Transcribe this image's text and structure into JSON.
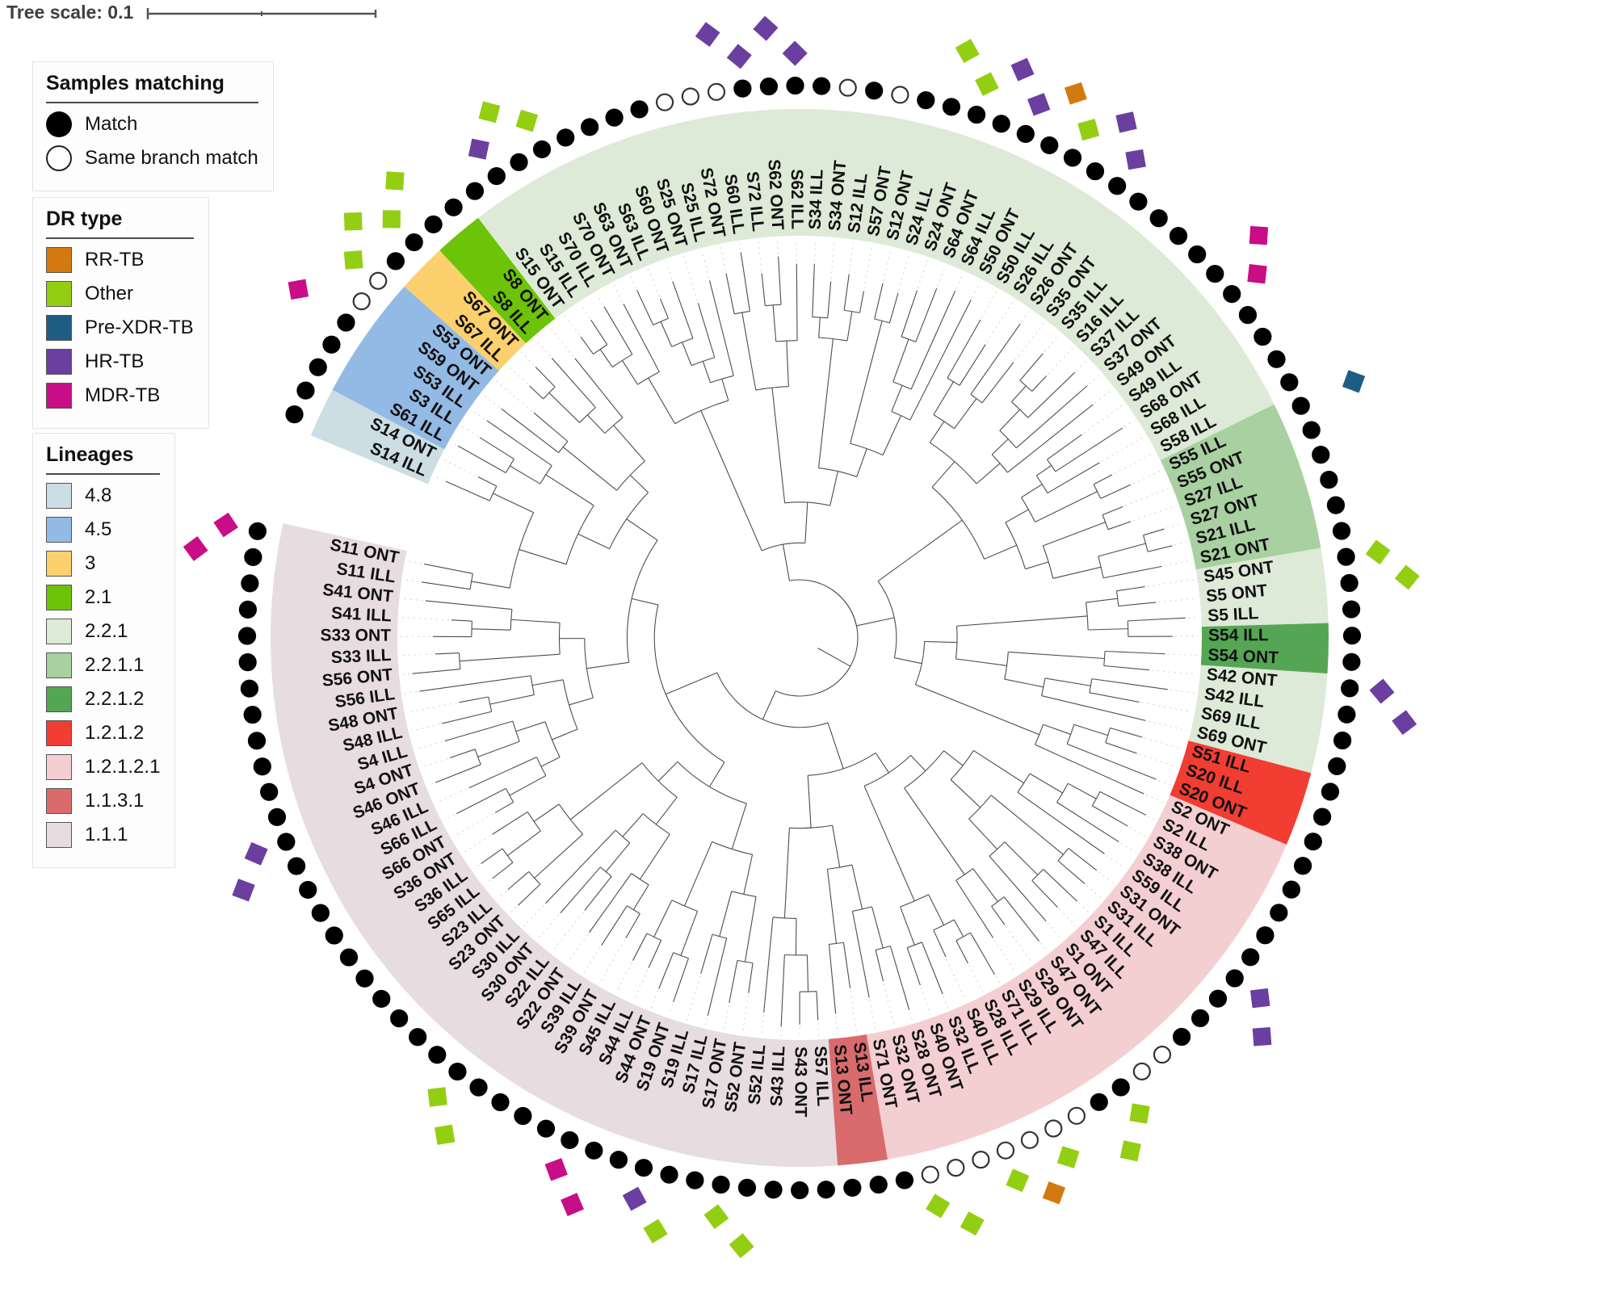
{
  "figure": {
    "tree_scale_label": "Tree scale: 0.1"
  },
  "legends": {
    "samples_matching": {
      "title": "Samples matching",
      "items": [
        {
          "label": "Match",
          "marker": "filled-circle"
        },
        {
          "label": "Same branch match",
          "marker": "open-circle"
        }
      ]
    },
    "dr_type": {
      "title": "DR type",
      "items": [
        {
          "key": "RR",
          "label": "RR-TB",
          "color": "#d4790f"
        },
        {
          "key": "Other",
          "label": "Other",
          "color": "#94ce12"
        },
        {
          "key": "PreXDR",
          "label": "Pre-XDR-TB",
          "color": "#1d5d84"
        },
        {
          "key": "HR",
          "label": "HR-TB",
          "color": "#6a3fa0"
        },
        {
          "key": "MDR",
          "label": "MDR-TB",
          "color": "#c90d87"
        }
      ]
    },
    "lineages": {
      "title": "Lineages",
      "items": [
        {
          "label": "4.8",
          "color": "#ccdde3"
        },
        {
          "label": "4.5",
          "color": "#92bae4"
        },
        {
          "label": "3",
          "color": "#fbd06d"
        },
        {
          "label": "2.1",
          "color": "#6cc308"
        },
        {
          "label": "2.2.1",
          "color": "#dcead7"
        },
        {
          "label": "2.2.1.1",
          "color": "#a9d0a0"
        },
        {
          "label": "2.2.1.2",
          "color": "#55a654"
        },
        {
          "label": "1.2.1.2",
          "color": "#f23d33"
        },
        {
          "label": "1.2.1.2.1",
          "color": "#f4cfd1"
        },
        {
          "label": "1.1.3.1",
          "color": "#d96b6c"
        },
        {
          "label": "1.1.1",
          "color": "#e7dce0"
        }
      ]
    }
  },
  "chart_data": {
    "type": "circular-phylogenetic-tree",
    "tree_scale": 0.1,
    "ring_gap_before": "S14 ILL",
    "leaf_fields": [
      "label",
      "lineage",
      "match(m=match,b=same_branch_match)",
      "dr_type"
    ],
    "leaves": [
      [
        "S15 ONT",
        "2.2.1",
        "m",
        null
      ],
      [
        "S15 ILL",
        "2.2.1",
        "m",
        "HR"
      ],
      [
        "S70 ILL",
        "2.2.1",
        "m",
        "Other"
      ],
      [
        "S70 ONT",
        "2.2.1",
        "m",
        "Other"
      ],
      [
        "S63 ONT",
        "2.2.1",
        "m",
        null
      ],
      [
        "S63 ILL",
        "2.2.1",
        "m",
        null
      ],
      [
        "S60 ONT",
        "2.2.1",
        "m",
        null
      ],
      [
        "S25 ONT",
        "2.2.1",
        "m",
        null
      ],
      [
        "S25 ILL",
        "2.2.1",
        "b",
        null
      ],
      [
        "S72 ONT",
        "2.2.1",
        "b",
        null
      ],
      [
        "S60 ILL",
        "2.2.1",
        "b",
        "HR"
      ],
      [
        "S72 ILL",
        "2.2.1",
        "m",
        "HR"
      ],
      [
        "S62 ONT",
        "2.2.1",
        "m",
        "HR"
      ],
      [
        "S62 ILL",
        "2.2.1",
        "m",
        "HR"
      ],
      [
        "S34 ILL",
        "2.2.1",
        "m",
        null
      ],
      [
        "S34 ONT",
        "2.2.1",
        "b",
        null
      ],
      [
        "S12 ILL",
        "2.2.1",
        "m",
        null
      ],
      [
        "S57 ONT",
        "2.2.1",
        "b",
        null
      ],
      [
        "S12 ONT",
        "2.2.1",
        "m",
        null
      ],
      [
        "S24 ILL",
        "2.2.1",
        "m",
        "Other"
      ],
      [
        "S24 ONT",
        "2.2.1",
        "m",
        "Other"
      ],
      [
        "S64 ONT",
        "2.2.1",
        "m",
        "HR"
      ],
      [
        "S64 ILL",
        "2.2.1",
        "m",
        "HR"
      ],
      [
        "S50 ONT",
        "2.2.1",
        "m",
        "RR"
      ],
      [
        "S50 ILL",
        "2.2.1",
        "m",
        "Other"
      ],
      [
        "S26 ILL",
        "2.2.1",
        "m",
        "HR"
      ],
      [
        "S26 ONT",
        "2.2.1",
        "m",
        "HR"
      ],
      [
        "S35 ONT",
        "2.2.1",
        "m",
        null
      ],
      [
        "S35 ILL",
        "2.2.1",
        "m",
        null
      ],
      [
        "S16 ILL",
        "2.2.1",
        "m",
        null
      ],
      [
        "S37 ILL",
        "2.2.1",
        "m",
        null
      ],
      [
        "S37 ONT",
        "2.2.1",
        "m",
        "MDR"
      ],
      [
        "S49 ONT",
        "2.2.1",
        "m",
        "MDR"
      ],
      [
        "S49 ILL",
        "2.2.1",
        "m",
        null
      ],
      [
        "S68 ONT",
        "2.2.1",
        "m",
        null
      ],
      [
        "S68 ILL",
        "2.2.1",
        "m",
        null
      ],
      [
        "S58 ILL",
        "2.2.1",
        "m",
        null
      ],
      [
        "S55 ILL",
        "2.2.1.1",
        "m",
        "PreXDR"
      ],
      [
        "S55 ONT",
        "2.2.1.1",
        "m",
        null
      ],
      [
        "S27 ILL",
        "2.2.1.1",
        "m",
        null
      ],
      [
        "S27 ONT",
        "2.2.1.1",
        "m",
        null
      ],
      [
        "S21 ILL",
        "2.2.1.1",
        "m",
        null
      ],
      [
        "S21 ONT",
        "2.2.1.1",
        "m",
        null
      ],
      [
        "S45 ONT",
        "2.2.1",
        "m",
        "Other"
      ],
      [
        "S5 ONT",
        "2.2.1",
        "m",
        "Other"
      ],
      [
        "S5 ILL",
        "2.2.1",
        "m",
        null
      ],
      [
        "S54 ILL",
        "2.2.1.2",
        "m",
        null
      ],
      [
        "S54 ONT",
        "2.2.1.2",
        "m",
        null
      ],
      [
        "S42 ONT",
        "2.2.1",
        "m",
        "HR"
      ],
      [
        "S42 ILL",
        "2.2.1",
        "m",
        "HR"
      ],
      [
        "S69 ILL",
        "2.2.1",
        "m",
        null
      ],
      [
        "S69 ONT",
        "2.2.1",
        "m",
        null
      ],
      [
        "S51 ILL",
        "1.2.1.2",
        "m",
        null
      ],
      [
        "S20 ILL",
        "1.2.1.2",
        "m",
        null
      ],
      [
        "S20 ONT",
        "1.2.1.2",
        "m",
        null
      ],
      [
        "S2 ONT",
        "1.2.1.2.1",
        "m",
        null
      ],
      [
        "S2 ILL",
        "1.2.1.2.1",
        "m",
        null
      ],
      [
        "S38 ONT",
        "1.2.1.2.1",
        "m",
        null
      ],
      [
        "S38 ILL",
        "1.2.1.2.1",
        "m",
        null
      ],
      [
        "S59 ILL",
        "1.2.1.2.1",
        "m",
        null
      ],
      [
        "S31 ONT",
        "1.2.1.2.1",
        "m",
        "HR"
      ],
      [
        "S31 ILL",
        "1.2.1.2.1",
        "m",
        "HR"
      ],
      [
        "S1 ILL",
        "1.2.1.2.1",
        "m",
        null
      ],
      [
        "S47 ILL",
        "1.2.1.2.1",
        "m",
        null
      ],
      [
        "S1 ONT",
        "1.2.1.2.1",
        "b",
        null
      ],
      [
        "S47 ONT",
        "1.2.1.2.1",
        "b",
        null
      ],
      [
        "S29 ONT",
        "1.2.1.2.1",
        "m",
        "Other"
      ],
      [
        "S29 ILL",
        "1.2.1.2.1",
        "m",
        "Other"
      ],
      [
        "S71 ILL",
        "1.2.1.2.1",
        "b",
        null
      ],
      [
        "S28 ILL",
        "1.2.1.2.1",
        "b",
        "Other"
      ],
      [
        "S40 ILL",
        "1.2.1.2.1",
        "b",
        "RR"
      ],
      [
        "S32 ILL",
        "1.2.1.2.1",
        "b",
        "Other"
      ],
      [
        "S40 ONT",
        "1.2.1.2.1",
        "b",
        null
      ],
      [
        "S28 ONT",
        "1.2.1.2.1",
        "b",
        "Other"
      ],
      [
        "S32 ONT",
        "1.2.1.2.1",
        "b",
        "Other"
      ],
      [
        "S71 ONT",
        "1.2.1.2.1",
        "m",
        null
      ],
      [
        "S13 ILL",
        "1.1.3.1",
        "m",
        null
      ],
      [
        "S13 ONT",
        "1.1.3.1",
        "m",
        null
      ],
      [
        "S57 ILL",
        "1.1.1",
        "m",
        null
      ],
      [
        "S43 ONT",
        "1.1.1",
        "m",
        null
      ],
      [
        "S43 ILL",
        "1.1.1",
        "m",
        null
      ],
      [
        "S52 ILL",
        "1.1.1",
        "m",
        "Other"
      ],
      [
        "S52 ONT",
        "1.1.1",
        "m",
        "Other"
      ],
      [
        "S17 ONT",
        "1.1.1",
        "m",
        null
      ],
      [
        "S17 ILL",
        "1.1.1",
        "m",
        "Other"
      ],
      [
        "S19 ILL",
        "1.1.1",
        "m",
        "HR"
      ],
      [
        "S19 ONT",
        "1.1.1",
        "m",
        null
      ],
      [
        "S44 ONT",
        "1.1.1",
        "m",
        "MDR"
      ],
      [
        "S44 ILL",
        "1.1.1",
        "m",
        "MDR"
      ],
      [
        "S45 ILL",
        "1.1.1",
        "m",
        null
      ],
      [
        "S39 ONT",
        "1.1.1",
        "m",
        null
      ],
      [
        "S39 ILL",
        "1.1.1",
        "m",
        null
      ],
      [
        "S22 ONT",
        "1.1.1",
        "m",
        "Other"
      ],
      [
        "S22 ILL",
        "1.1.1",
        "m",
        "Other"
      ],
      [
        "S30 ONT",
        "1.1.1",
        "m",
        null
      ],
      [
        "S30 ILL",
        "1.1.1",
        "m",
        null
      ],
      [
        "S23 ONT",
        "1.1.1",
        "m",
        null
      ],
      [
        "S23 ILL",
        "1.1.1",
        "m",
        null
      ],
      [
        "S65 ILL",
        "1.1.1",
        "m",
        null
      ],
      [
        "S36 ILL",
        "1.1.1",
        "m",
        null
      ],
      [
        "S36 ONT",
        "1.1.1",
        "m",
        null
      ],
      [
        "S66 ONT",
        "1.1.1",
        "m",
        null
      ],
      [
        "S66 ILL",
        "1.1.1",
        "m",
        null
      ],
      [
        "S46 ILL",
        "1.1.1",
        "m",
        "HR"
      ],
      [
        "S46 ONT",
        "1.1.1",
        "m",
        "HR"
      ],
      [
        "S4 ONT",
        "1.1.1",
        "m",
        null
      ],
      [
        "S4 ILL",
        "1.1.1",
        "m",
        null
      ],
      [
        "S48 ILL",
        "1.1.1",
        "m",
        null
      ],
      [
        "S48 ONT",
        "1.1.1",
        "m",
        null
      ],
      [
        "S56 ILL",
        "1.1.1",
        "m",
        null
      ],
      [
        "S56 ONT",
        "1.1.1",
        "m",
        null
      ],
      [
        "S33 ILL",
        "1.1.1",
        "m",
        null
      ],
      [
        "S33 ONT",
        "1.1.1",
        "m",
        null
      ],
      [
        "S41 ILL",
        "1.1.1",
        "m",
        null
      ],
      [
        "S41 ONT",
        "1.1.1",
        "m",
        null
      ],
      [
        "S11 ILL",
        "1.1.1",
        "m",
        "MDR"
      ],
      [
        "S11 ONT",
        "1.1.1",
        "m",
        "MDR"
      ],
      [
        "S14 ILL",
        "4.8",
        "m",
        null
      ],
      [
        "S14 ONT",
        "4.8",
        "m",
        null
      ],
      [
        "S61 ILL",
        "4.5",
        "m",
        null
      ],
      [
        "S3 ILL",
        "4.5",
        "m",
        null
      ],
      [
        "S53 ILL",
        "4.5",
        "m",
        "MDR"
      ],
      [
        "S59 ONT",
        "4.5",
        "b",
        null
      ],
      [
        "S53 ONT",
        "4.5",
        "b",
        "Other"
      ],
      [
        "S67 ILL",
        "3",
        "m",
        "Other"
      ],
      [
        "S67 ONT",
        "3",
        "m",
        "Other"
      ],
      [
        "S8 ILL",
        "2.1",
        "m",
        "Other"
      ],
      [
        "S8 ONT",
        "2.1",
        "m",
        null
      ]
    ]
  }
}
